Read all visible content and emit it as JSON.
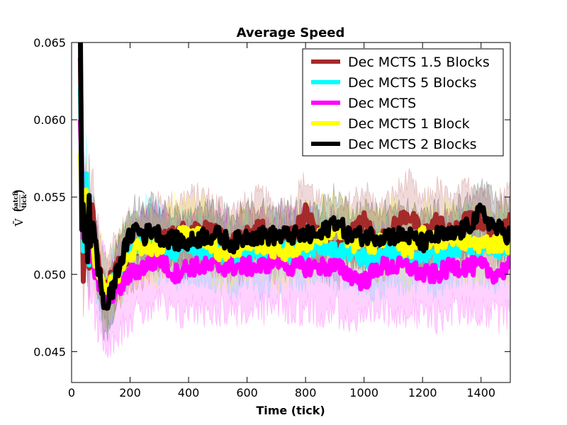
{
  "chart_data": {
    "type": "line",
    "title": "Average Speed",
    "xlabel": "Time (tick)",
    "ylabel": {
      "symbol": "V̄",
      "unit_numerator": "patch",
      "unit_denominator": "tick"
    },
    "xlim": [
      0,
      1500
    ],
    "ylim": [
      0.043,
      0.065
    ],
    "xticks": [
      0,
      200,
      400,
      600,
      800,
      1000,
      1200,
      1400
    ],
    "xtick_labels": [
      "0",
      "200",
      "400",
      "600",
      "800",
      "1000",
      "1200",
      "1400"
    ],
    "yticks": [
      0.045,
      0.05,
      0.055,
      0.06,
      0.065
    ],
    "ytick_labels": [
      "0.045",
      "0.050",
      "0.055",
      "0.060",
      "0.065"
    ],
    "grid": false,
    "legend_position": "top-right",
    "series": [
      {
        "name": "Dec MCTS 1.5 Blocks",
        "color": "#a52a2a",
        "line_width": 7,
        "x": [
          30,
          40,
          50,
          60,
          70,
          80,
          90,
          100,
          110,
          120,
          130,
          140,
          160,
          180,
          200,
          250,
          300,
          350,
          400,
          450,
          500,
          550,
          600,
          650,
          700,
          750,
          800,
          850,
          900,
          950,
          1000,
          1050,
          1100,
          1150,
          1200,
          1250,
          1300,
          1350,
          1400,
          1450,
          1500
        ],
        "y": [
          0.064,
          0.05,
          0.055,
          0.051,
          0.055,
          0.052,
          0.051,
          0.05,
          0.049,
          0.049,
          0.0495,
          0.05,
          0.0505,
          0.051,
          0.0515,
          0.052,
          0.0525,
          0.0525,
          0.053,
          0.053,
          0.0525,
          0.052,
          0.0525,
          0.053,
          0.052,
          0.0525,
          0.054,
          0.0525,
          0.0515,
          0.0525,
          0.0535,
          0.052,
          0.053,
          0.054,
          0.0525,
          0.0535,
          0.0525,
          0.0535,
          0.0535,
          0.0525,
          0.0535
        ],
        "band": 0.003
      },
      {
        "name": "Dec MCTS 5 Blocks",
        "color": "#00ffff",
        "line_width": 7,
        "x": [
          30,
          40,
          50,
          60,
          70,
          80,
          90,
          100,
          110,
          120,
          130,
          140,
          160,
          180,
          200,
          250,
          300,
          350,
          400,
          450,
          500,
          550,
          600,
          650,
          700,
          750,
          800,
          850,
          900,
          950,
          1000,
          1050,
          1100,
          1150,
          1200,
          1250,
          1300,
          1350,
          1400,
          1450,
          1500
        ],
        "y": [
          0.062,
          0.052,
          0.057,
          0.051,
          0.053,
          0.051,
          0.05,
          0.0495,
          0.049,
          0.0485,
          0.049,
          0.0495,
          0.05,
          0.051,
          0.0515,
          0.0525,
          0.052,
          0.0515,
          0.052,
          0.0515,
          0.0515,
          0.051,
          0.0515,
          0.051,
          0.0515,
          0.0515,
          0.0515,
          0.052,
          0.0515,
          0.0515,
          0.051,
          0.051,
          0.0515,
          0.051,
          0.0515,
          0.051,
          0.0515,
          0.052,
          0.0515,
          0.0515,
          0.052
        ],
        "band": 0.0028
      },
      {
        "name": "Dec MCTS",
        "color": "#ff00ff",
        "line_width": 7,
        "x": [
          30,
          40,
          50,
          60,
          70,
          80,
          90,
          100,
          110,
          120,
          130,
          140,
          160,
          180,
          200,
          250,
          300,
          350,
          400,
          450,
          500,
          550,
          600,
          650,
          700,
          750,
          800,
          850,
          900,
          950,
          1000,
          1050,
          1100,
          1150,
          1200,
          1250,
          1300,
          1350,
          1400,
          1450,
          1500
        ],
        "y": [
          0.06,
          0.052,
          0.054,
          0.051,
          0.052,
          0.05,
          0.0495,
          0.049,
          0.0485,
          0.0485,
          0.0485,
          0.0488,
          0.049,
          0.0495,
          0.05,
          0.0505,
          0.051,
          0.05,
          0.0505,
          0.0505,
          0.0505,
          0.0505,
          0.0505,
          0.0505,
          0.051,
          0.0505,
          0.0505,
          0.0505,
          0.0505,
          0.05,
          0.0495,
          0.0505,
          0.0505,
          0.0505,
          0.05,
          0.05,
          0.0505,
          0.0505,
          0.0505,
          0.05,
          0.0505
        ],
        "band": 0.004
      },
      {
        "name": "Dec MCTS 1 Block",
        "color": "#ffff00",
        "line_width": 7,
        "x": [
          30,
          40,
          50,
          60,
          70,
          80,
          90,
          100,
          110,
          120,
          130,
          140,
          160,
          180,
          200,
          250,
          300,
          350,
          400,
          450,
          500,
          550,
          600,
          650,
          700,
          750,
          800,
          850,
          900,
          950,
          1000,
          1050,
          1100,
          1150,
          1200,
          1250,
          1300,
          1350,
          1400,
          1450,
          1500
        ],
        "y": [
          0.058,
          0.053,
          0.055,
          0.052,
          0.053,
          0.051,
          0.0505,
          0.05,
          0.0495,
          0.049,
          0.0492,
          0.0495,
          0.05,
          0.051,
          0.0515,
          0.052,
          0.0515,
          0.0525,
          0.0525,
          0.0525,
          0.0515,
          0.0515,
          0.052,
          0.052,
          0.0515,
          0.0515,
          0.052,
          0.0525,
          0.053,
          0.052,
          0.052,
          0.052,
          0.0525,
          0.0515,
          0.0525,
          0.052,
          0.0525,
          0.052,
          0.052,
          0.052,
          0.052
        ],
        "band": 0.0028
      },
      {
        "name": "Dec MCTS 2 Blocks",
        "color": "#000000",
        "line_width": 7,
        "x": [
          30,
          35,
          40,
          45,
          50,
          55,
          60,
          65,
          70,
          80,
          90,
          100,
          110,
          120,
          130,
          140,
          160,
          180,
          200,
          220,
          250,
          280,
          300,
          350,
          400,
          450,
          500,
          550,
          600,
          650,
          700,
          750,
          800,
          850,
          900,
          950,
          1000,
          1050,
          1100,
          1150,
          1200,
          1250,
          1300,
          1350,
          1400,
          1450,
          1500
        ],
        "y": [
          0.066,
          0.053,
          0.055,
          0.052,
          0.054,
          0.051,
          0.0555,
          0.052,
          0.053,
          0.0525,
          0.0505,
          0.0495,
          0.048,
          0.0478,
          0.0485,
          0.049,
          0.0505,
          0.0515,
          0.0525,
          0.053,
          0.0525,
          0.053,
          0.0525,
          0.0522,
          0.052,
          0.0525,
          0.0525,
          0.052,
          0.0525,
          0.0525,
          0.0525,
          0.0525,
          0.0525,
          0.0525,
          0.0535,
          0.0525,
          0.0525,
          0.0525,
          0.0525,
          0.0525,
          0.052,
          0.0525,
          0.0525,
          0.053,
          0.054,
          0.053,
          0.0525
        ],
        "band": 0.0025
      }
    ]
  }
}
